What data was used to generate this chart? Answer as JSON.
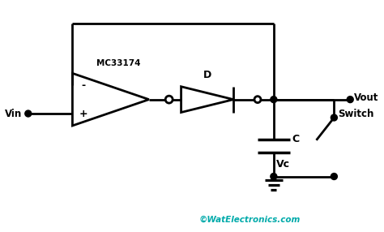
{
  "bg_color": "#ffffff",
  "line_color": "#000000",
  "text_color": "#000000",
  "cyan_color": "#00AAAA",
  "watermark": "©WatElectronics.com",
  "labels": {
    "vin": "Vin",
    "vout": "Vout",
    "mc": "MC33174",
    "D": "D",
    "C": "C",
    "Vc": "Vc",
    "Switch": "Switch"
  },
  "figsize": [
    4.74,
    2.86
  ],
  "dpi": 100
}
